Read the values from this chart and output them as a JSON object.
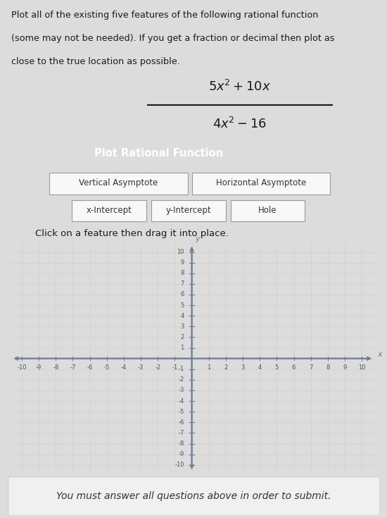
{
  "bg_color": "#dcdcdc",
  "grid_bg_color": "#ece9e4",
  "text_top_line1": "Plot all of the existing five features of the following rational function",
  "text_top_line2": "(some may not be needed). If you get a fraction or decimal then plot as",
  "text_top_line3": "close to the true location as possible.",
  "button_text": "Plot Rational Function",
  "button_bg": "#2d4a6b",
  "button_text_color": "#ffffff",
  "feature_buttons_row1": [
    "Vertical Asymptote",
    "Horizontal Asymptote"
  ],
  "feature_buttons_row2": [
    "x-Intercept",
    "y-Intercept",
    "Hole"
  ],
  "feature_btn_bg": "#f8f8f8",
  "feature_btn_border": "#999999",
  "instruction_text": "Click on a feature then drag it into place.",
  "axis_color": "#6a7d96",
  "grid_color": "#d0ccc5",
  "tick_color": "#555555",
  "xticks": [
    -10,
    -9,
    -8,
    -7,
    -6,
    -5,
    -4,
    -3,
    -2,
    -1,
    1,
    2,
    3,
    4,
    5,
    6,
    7,
    8,
    9,
    10
  ],
  "yticks": [
    -10,
    -9,
    -8,
    -7,
    -6,
    -5,
    -4,
    -3,
    -2,
    -1,
    1,
    2,
    3,
    4,
    5,
    6,
    7,
    8,
    9,
    10
  ],
  "footer_text": "You must answer all questions above in order to submit.",
  "footer_bg": "#f0f0f0",
  "footer_border": "#cccccc"
}
